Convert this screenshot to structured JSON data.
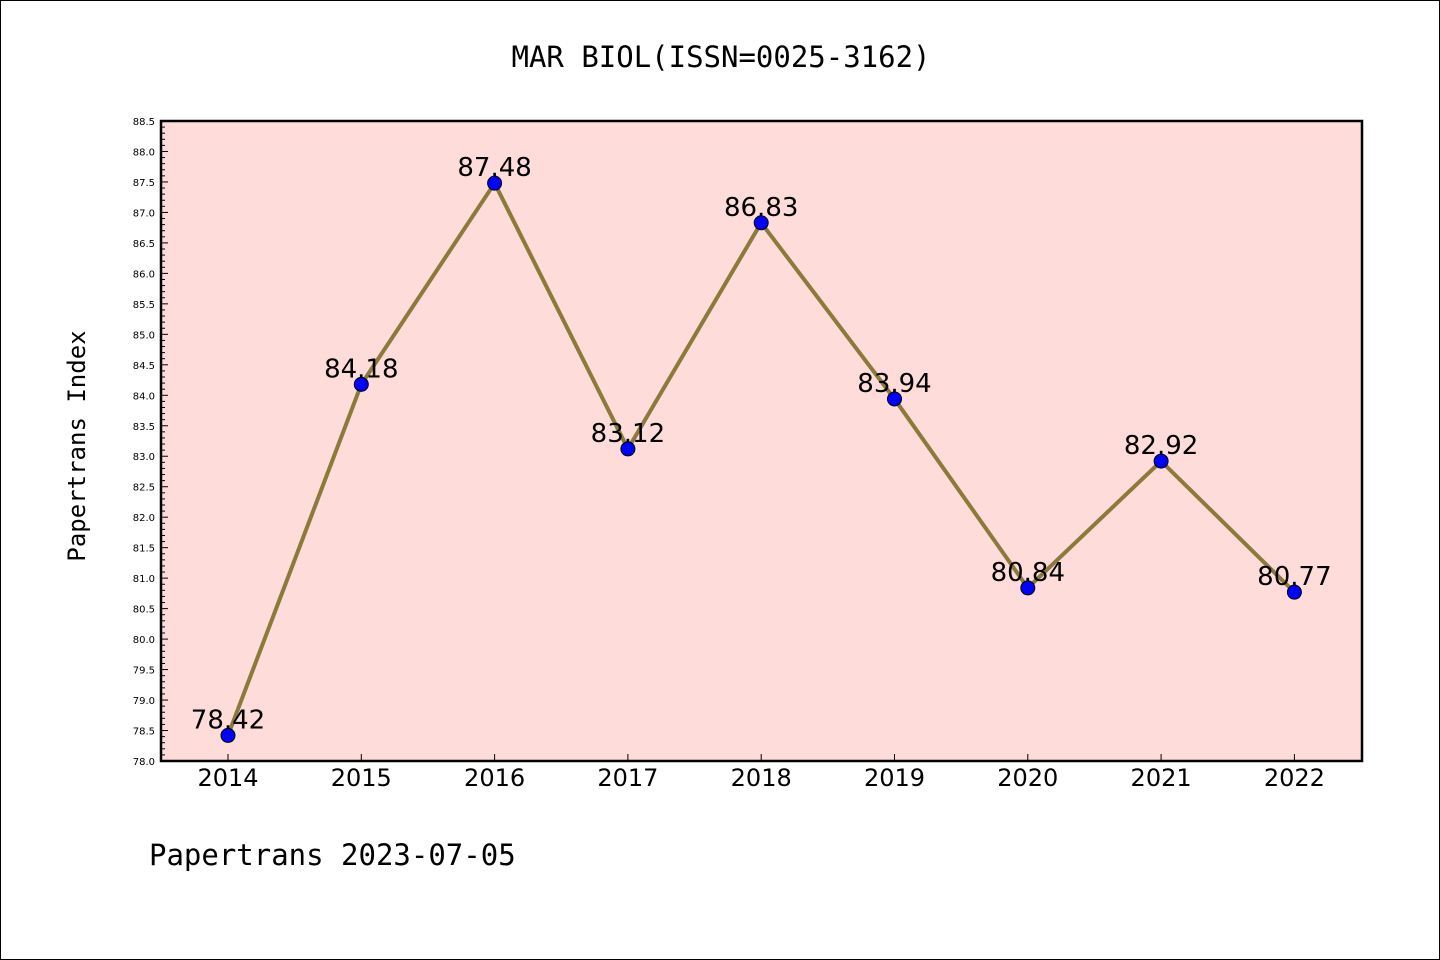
{
  "chart_data": {
    "type": "line",
    "title": "MAR BIOL(ISSN=0025-3162)",
    "xlabel": "",
    "ylabel": "Papertrans Index",
    "categories": [
      "2014",
      "2015",
      "2016",
      "2017",
      "2018",
      "2019",
      "2020",
      "2021",
      "2022"
    ],
    "series": [
      {
        "values": [
          78.42,
          84.18,
          87.48,
          83.12,
          86.83,
          83.94,
          80.84,
          82.92,
          80.77
        ],
        "labels": [
          "78.42",
          "84.18",
          "87.48",
          "83.12",
          "86.83",
          "83.94",
          "80.84",
          "82.92",
          "80.77"
        ],
        "line_color": "#8B7A3A",
        "marker_color": "#0000FF"
      }
    ],
    "ylim": [
      78.0,
      88.5
    ],
    "yticks": [
      "78.0",
      "78.5",
      "79.0",
      "79.5",
      "80.0",
      "80.5",
      "81.0",
      "81.5",
      "82.0",
      "82.5",
      "83.0",
      "83.5",
      "84.0",
      "84.5",
      "85.0",
      "85.5",
      "86.0",
      "86.5",
      "87.0",
      "87.5",
      "88.0",
      "88.5"
    ],
    "grid": false,
    "plot_background": "#FDDCDA"
  },
  "footer": "Papertrans 2023-07-05"
}
